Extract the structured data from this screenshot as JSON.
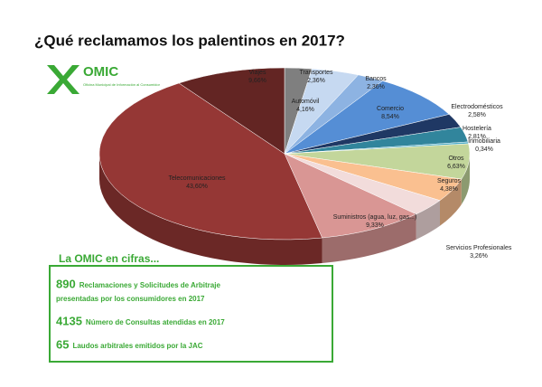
{
  "chart_data": {
    "type": "pie",
    "title": "¿Qué reclamamos los palentinos en 2017?",
    "categories": [
      "Transportes",
      "Automóvil",
      "Bancos",
      "Comercio",
      "Electrodomésticos",
      "Hostelería",
      "Inmobiliaria",
      "Otros",
      "Seguros",
      "Servicios Profesionales",
      "Suministros (agua, luz, gas...)",
      "Telecomunicaciones",
      "Viajes"
    ],
    "values": [
      2.36,
      4.16,
      2.36,
      8.54,
      2.58,
      2.81,
      0.34,
      6.63,
      4.38,
      3.26,
      9.33,
      43.6,
      9.66
    ],
    "value_labels": [
      "2,36%",
      "4,16%",
      "2,36%",
      "8,54%",
      "2,58%",
      "2,81%",
      "0,34%",
      "6,63%",
      "4,38%",
      "3,26%",
      "9,33%",
      "43,60%",
      "9,66%"
    ],
    "colors": [
      "#7f7f7f",
      "#c6d9f1",
      "#8db3e2",
      "#558ed5",
      "#1f3864",
      "#31859c",
      "#4bacc6",
      "#c3d69b",
      "#fac090",
      "#f2dcdb",
      "#d99694",
      "#953735",
      "#632523"
    ]
  },
  "logo": {
    "name": "OMIC",
    "subtitle": "Oficina Municipal de Información al Consumidor"
  },
  "info": {
    "title": "La OMIC en cifras...",
    "items": [
      {
        "number": "890",
        "lines": [
          "Reclamaciones y Solicitudes de Arbitraje",
          "presentadas por los consumidores en 2017"
        ]
      },
      {
        "number": "4135",
        "lines": [
          "Número de Consultas atendidas en 2017"
        ]
      },
      {
        "number": "65",
        "lines": [
          "Laudos arbitrales emitidos por la JAC"
        ]
      }
    ]
  }
}
